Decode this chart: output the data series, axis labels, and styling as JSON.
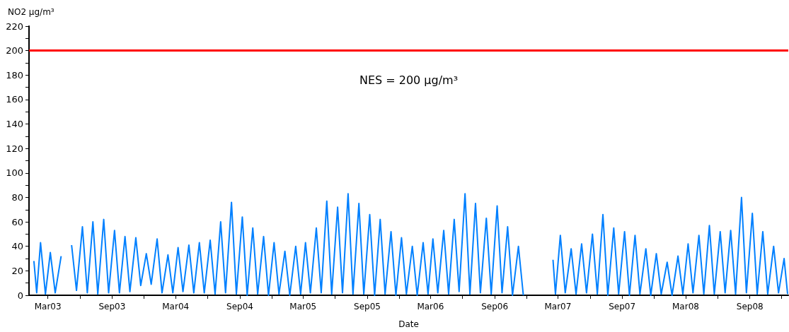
{
  "chart_data": {
    "type": "line",
    "xlabel": "Date",
    "ylabel": "NO2 µg/m³",
    "marker": "none",
    "line_style": "solid",
    "xlim": [
      "2003-01-06",
      "2008-12-20"
    ],
    "xticks": [
      {
        "value": "2003-03",
        "label": "Mar03"
      },
      {
        "value": "2003-06",
        "label": null
      },
      {
        "value": "2003-09",
        "label": "Sep03"
      },
      {
        "value": "2003-12",
        "label": null
      },
      {
        "value": "2004-03",
        "label": "Mar04"
      },
      {
        "value": "2004-06",
        "label": null
      },
      {
        "value": "2004-09",
        "label": "Sep04"
      },
      {
        "value": "2004-12",
        "label": null
      },
      {
        "value": "2005-03",
        "label": "Mar05"
      },
      {
        "value": "2005-06",
        "label": null
      },
      {
        "value": "2005-09",
        "label": "Sep05"
      },
      {
        "value": "2005-12",
        "label": null
      },
      {
        "value": "2006-03",
        "label": "Mar06"
      },
      {
        "value": "2006-06",
        "label": null
      },
      {
        "value": "2006-09",
        "label": "Sep06"
      },
      {
        "value": "2006-12",
        "label": null
      },
      {
        "value": "2007-03",
        "label": "Mar07"
      },
      {
        "value": "2007-06",
        "label": null
      },
      {
        "value": "2007-09",
        "label": "Sep07"
      },
      {
        "value": "2007-12",
        "label": null
      },
      {
        "value": "2008-03",
        "label": "Mar08"
      },
      {
        "value": "2008-06",
        "label": null
      },
      {
        "value": "2008-09",
        "label": "Sep08"
      },
      {
        "value": "2008-12",
        "label": null
      }
    ],
    "ylim": [
      0,
      220
    ],
    "yticks": [
      0,
      {
        "value": 10,
        "label": null
      },
      20,
      {
        "value": 30,
        "label": null
      },
      40,
      {
        "value": 50,
        "label": null
      },
      60,
      {
        "value": 70,
        "label": null
      },
      80,
      {
        "value": 90,
        "label": null
      },
      100,
      {
        "value": 110,
        "label": null
      },
      120,
      {
        "value": 130,
        "label": null
      },
      140,
      {
        "value": 150,
        "label": null
      },
      160,
      {
        "value": 170,
        "label": null
      },
      180,
      {
        "value": 190,
        "label": null
      },
      200,
      {
        "value": 210,
        "label": null
      },
      220
    ],
    "ref_lines": [
      {
        "axis": "y",
        "value": 200,
        "label": "NES = 200 µg/m³",
        "color": "#ff0000"
      }
    ],
    "x": [
      "2003-01-20",
      "2003-01-28",
      "2003-02-08",
      "2003-02-22",
      "2003-03-08",
      "2003-03-22",
      "2003-04-08",
      "2003-04-22",
      "2003-05-08",
      "2003-05-22",
      "2003-06-08",
      "2003-06-22",
      "2003-07-08",
      "2003-07-22",
      "2003-08-08",
      "2003-08-22",
      "2003-09-08",
      "2003-09-22",
      "2003-10-08",
      "2003-10-22",
      "2003-11-08",
      "2003-11-22",
      "2003-12-08",
      "2003-12-22",
      "2004-01-08",
      "2004-01-22",
      "2004-02-08",
      "2004-02-22",
      "2004-03-08",
      "2004-03-22",
      "2004-04-08",
      "2004-04-22",
      "2004-05-08",
      "2004-05-22",
      "2004-06-08",
      "2004-06-22",
      "2004-07-08",
      "2004-07-22",
      "2004-08-08",
      "2004-08-22",
      "2004-09-08",
      "2004-09-22",
      "2004-10-08",
      "2004-10-22",
      "2004-11-08",
      "2004-11-22",
      "2004-12-08",
      "2004-12-22",
      "2005-01-08",
      "2005-01-22",
      "2005-02-08",
      "2005-02-22",
      "2005-03-08",
      "2005-03-22",
      "2005-04-08",
      "2005-04-22",
      "2005-05-08",
      "2005-05-22",
      "2005-06-08",
      "2005-06-22",
      "2005-07-08",
      "2005-07-22",
      "2005-08-08",
      "2005-08-22",
      "2005-09-08",
      "2005-09-22",
      "2005-10-08",
      "2005-10-22",
      "2005-11-08",
      "2005-11-22",
      "2005-12-08",
      "2005-12-22",
      "2006-01-08",
      "2006-01-22",
      "2006-02-08",
      "2006-02-22",
      "2006-03-08",
      "2006-03-22",
      "2006-04-08",
      "2006-04-22",
      "2006-05-08",
      "2006-05-22",
      "2006-06-08",
      "2006-06-22",
      "2006-07-08",
      "2006-07-22",
      "2006-08-08",
      "2006-08-22",
      "2006-09-08",
      "2006-09-22",
      "2006-10-08",
      "2006-10-22",
      "2006-11-08",
      "2006-11-22",
      "2006-12-20",
      "2007-02-15",
      "2007-02-22",
      "2007-03-08",
      "2007-03-22",
      "2007-04-08",
      "2007-04-22",
      "2007-05-08",
      "2007-05-22",
      "2007-06-08",
      "2007-06-22",
      "2007-07-08",
      "2007-07-22",
      "2007-08-08",
      "2007-08-22",
      "2007-09-08",
      "2007-09-22",
      "2007-10-08",
      "2007-10-22",
      "2007-11-08",
      "2007-11-22",
      "2007-12-08",
      "2007-12-22",
      "2008-01-08",
      "2008-01-22",
      "2008-02-08",
      "2008-02-22",
      "2008-03-08",
      "2008-03-22",
      "2008-04-08",
      "2008-04-22",
      "2008-05-08",
      "2008-05-22",
      "2008-06-08",
      "2008-06-22",
      "2008-07-08",
      "2008-07-22",
      "2008-08-08",
      "2008-08-22",
      "2008-09-08",
      "2008-09-22",
      "2008-10-08",
      "2008-10-22",
      "2008-11-08",
      "2008-11-22",
      "2008-12-08",
      "2008-12-18"
    ],
    "series": [
      {
        "color": "#0080ff",
        "values": [
          28,
          2,
          43,
          1,
          35,
          2,
          32,
          null,
          41,
          4,
          56,
          2,
          60,
          1,
          62,
          2,
          53,
          2,
          48,
          3,
          47,
          8,
          34,
          9,
          46,
          2,
          33,
          2,
          39,
          3,
          41,
          2,
          43,
          2,
          45,
          1,
          60,
          2,
          76,
          1,
          64,
          0,
          55,
          1,
          48,
          0,
          43,
          1,
          36,
          0,
          40,
          1,
          43,
          2,
          55,
          2,
          77,
          1,
          72,
          2,
          83,
          1,
          75,
          1,
          66,
          0,
          62,
          1,
          52,
          0,
          47,
          1,
          40,
          0,
          43,
          1,
          46,
          2,
          53,
          1,
          62,
          3,
          83,
          1,
          75,
          2,
          63,
          1,
          73,
          2,
          56,
          0,
          40,
          0,
          null,
          29,
          1,
          49,
          2,
          38,
          1,
          42,
          2,
          50,
          1,
          66,
          0,
          55,
          1,
          52,
          0,
          49,
          1,
          38,
          0,
          34,
          1,
          27,
          0,
          32,
          1,
          42,
          2,
          49,
          1,
          57,
          1,
          52,
          2,
          53,
          1,
          80,
          2,
          67,
          1,
          52,
          1,
          40,
          2,
          30,
          1
        ]
      }
    ]
  }
}
